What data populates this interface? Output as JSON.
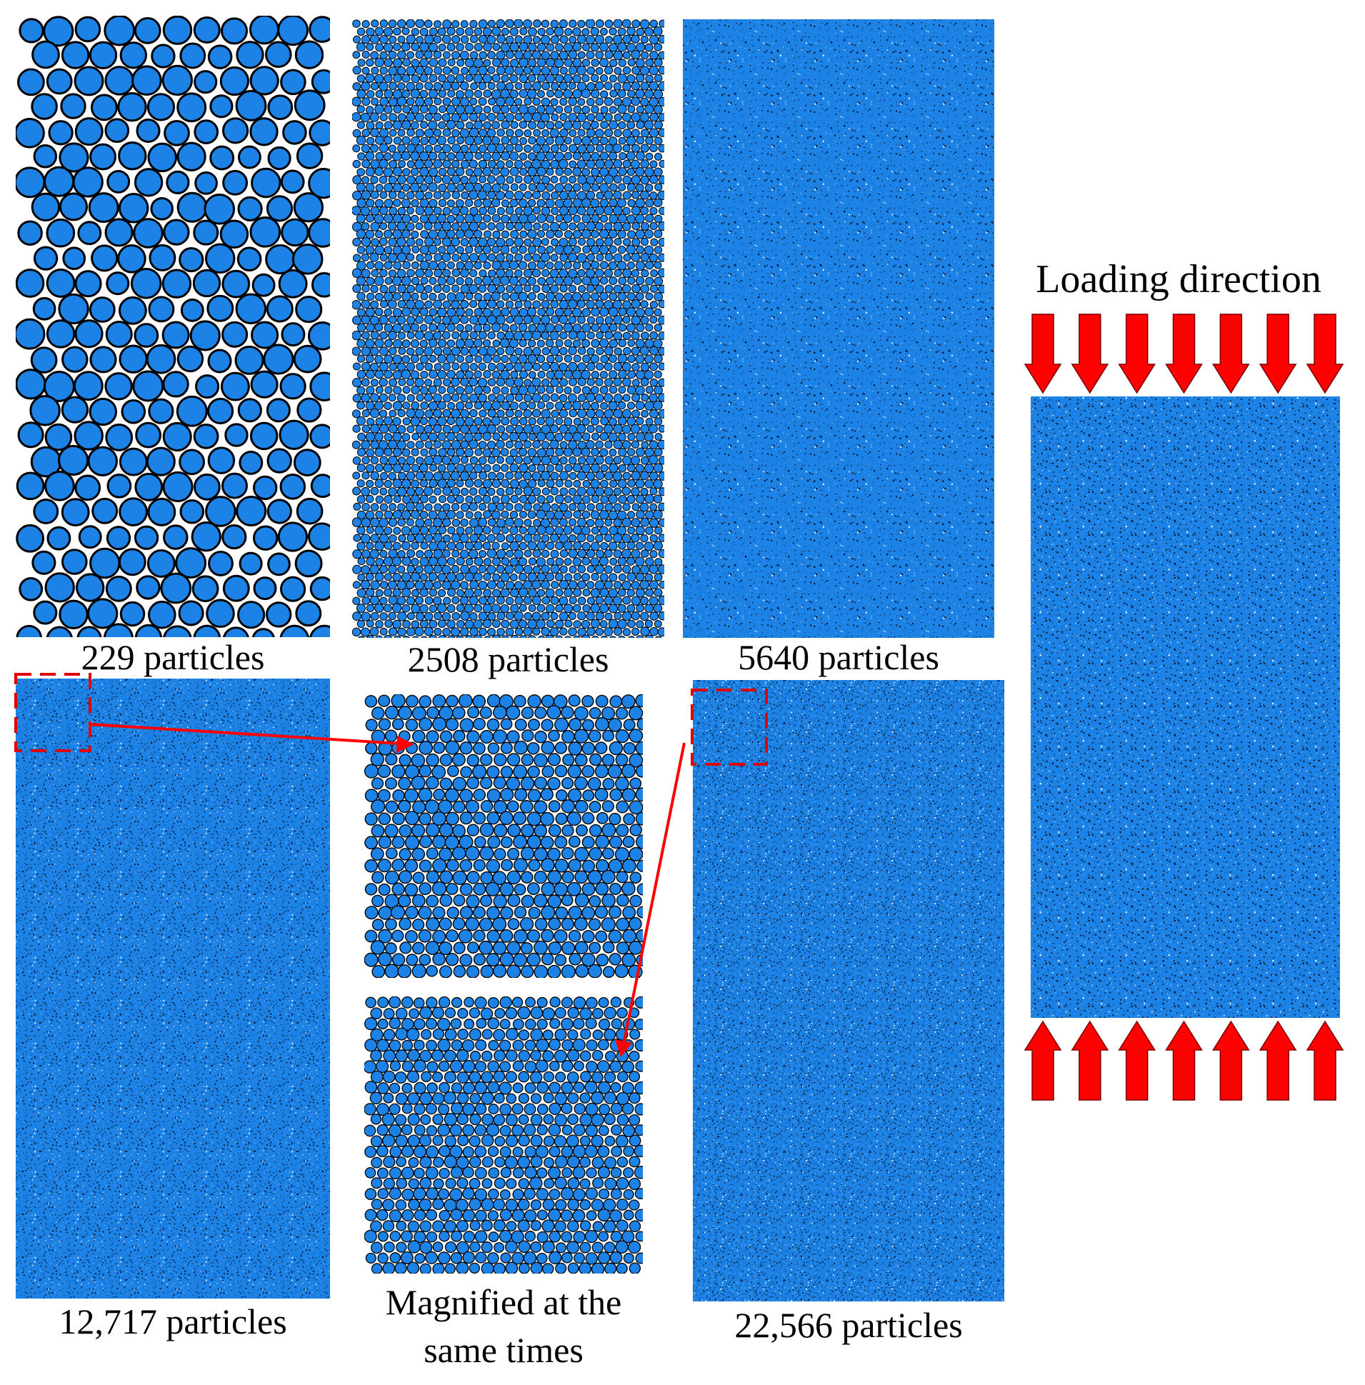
{
  "colors": {
    "particle": "#1c82e6",
    "particle_edge": "#000000",
    "arrow": "#ff0000",
    "annotation": "#e00000"
  },
  "samples": [
    {
      "label": "229 particles"
    },
    {
      "label": "2508 particles"
    },
    {
      "label": "5640 particles"
    },
    {
      "label": "12,717 particles"
    },
    {
      "label": "22,566 particles"
    }
  ],
  "magnified": {
    "label_line1": "Magnified at the",
    "label_line2": "same times"
  },
  "loading": {
    "label": "Loading direction",
    "arrow_count": 7,
    "top_arrows_icon": "arrow-down-icon",
    "bottom_arrows_icon": "arrow-up-icon"
  }
}
